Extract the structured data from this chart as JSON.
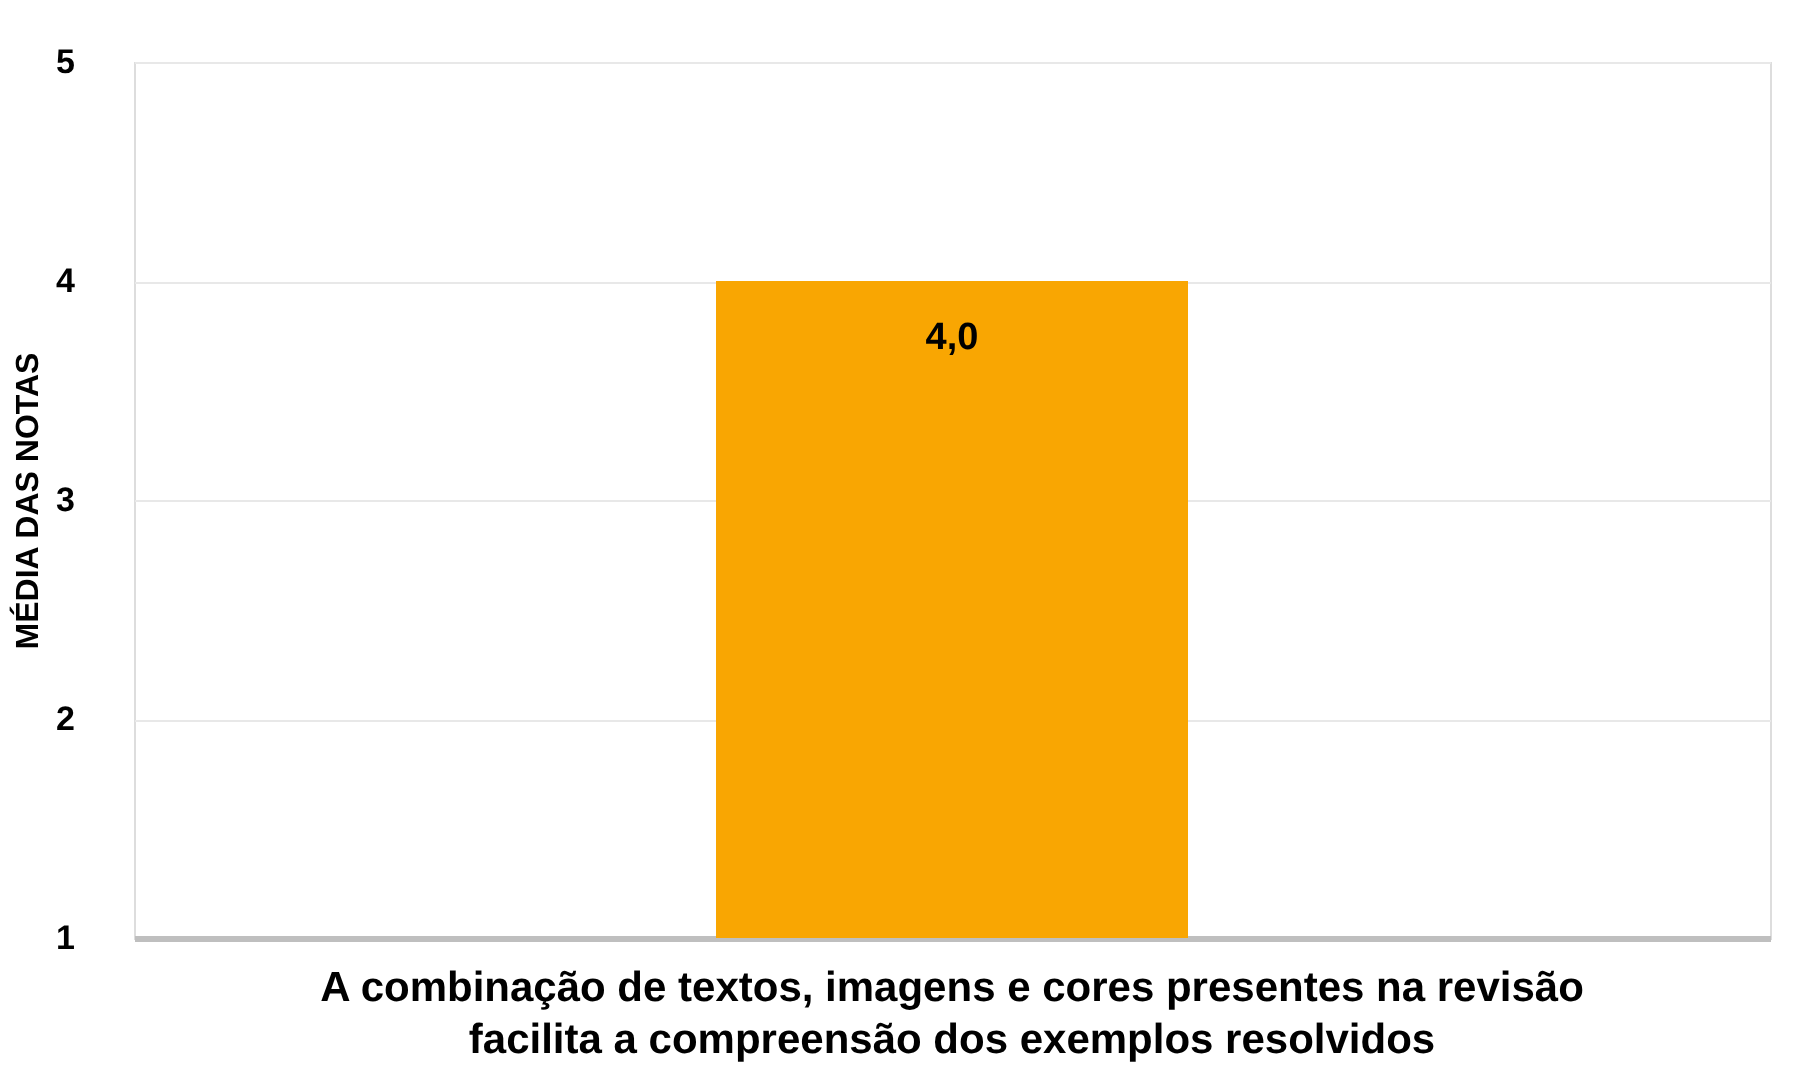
{
  "chart_data": {
    "type": "bar",
    "ylabel": "MÉDIA DAS NOTAS",
    "categories": [
      "A combinação de textos, imagens e cores presentes na revisão facilita a compreensão dos exemplos resolvidos"
    ],
    "series": [
      {
        "color": "#f9a602",
        "values": [
          4.0
        ],
        "value_labels": [
          "4,0"
        ]
      }
    ],
    "ylim": [
      1,
      5
    ],
    "yticks": [
      1,
      2,
      3,
      4,
      5
    ],
    "grid": "y"
  }
}
